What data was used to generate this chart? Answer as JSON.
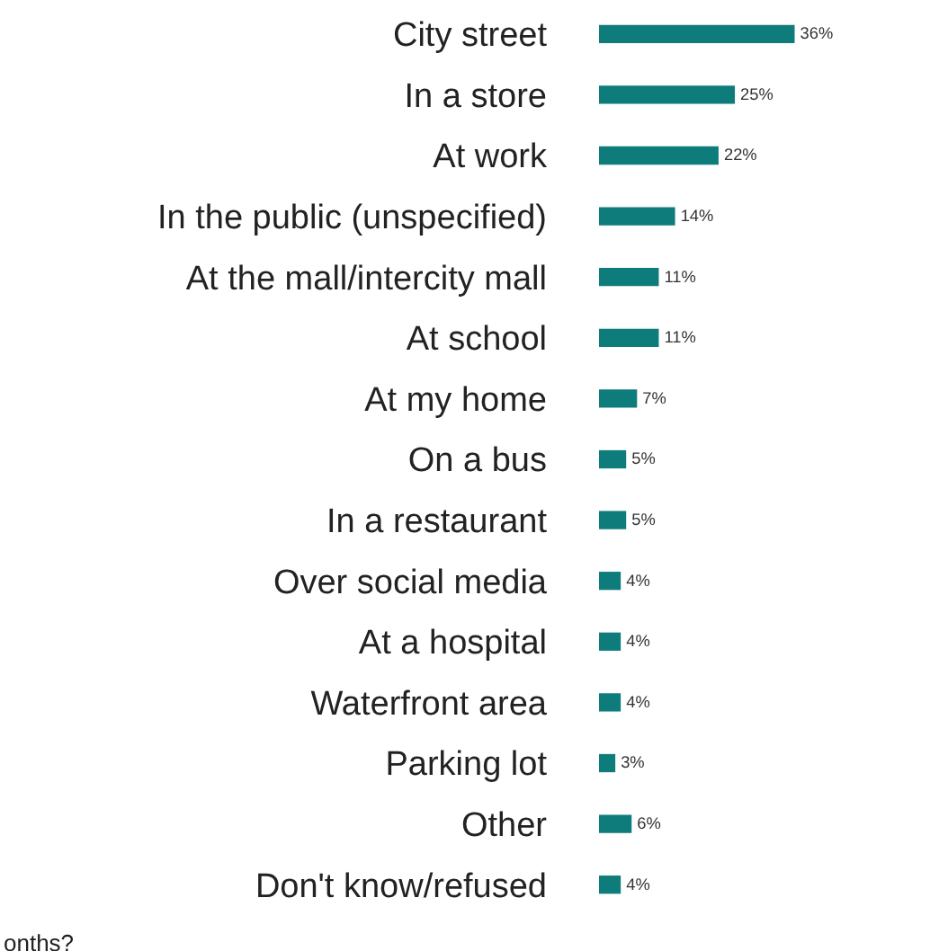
{
  "chart_data": {
    "type": "bar",
    "orientation": "horizontal",
    "categories": [
      "City street",
      "In a store",
      "At work",
      "In the public (unspecified)",
      "At the mall/intercity mall",
      "At school",
      "At my home",
      "On a bus",
      "In a restaurant",
      "Over social media",
      "At a hospital",
      "Waterfront area",
      "Parking lot",
      "Other",
      "Don't know/refused"
    ],
    "values": [
      36,
      25,
      22,
      14,
      11,
      11,
      7,
      5,
      5,
      4,
      4,
      4,
      3,
      6,
      4
    ],
    "value_labels": [
      "36%",
      "25%",
      "22%",
      "14%",
      "11%",
      "11%",
      "7%",
      "5%",
      "5%",
      "4%",
      "4%",
      "4%",
      "3%",
      "6%",
      "4%"
    ],
    "color": "#0e7c7b",
    "annotations": [
      "onths?"
    ],
    "grid": false,
    "legend": false
  }
}
